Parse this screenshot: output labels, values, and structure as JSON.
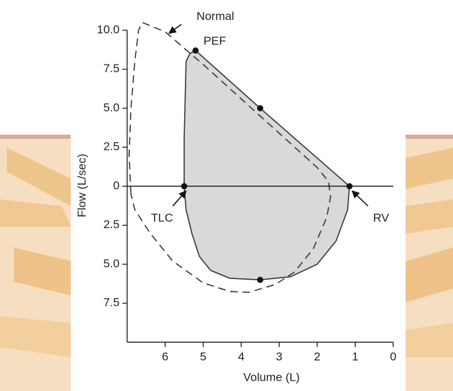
{
  "chart_data": {
    "type": "line",
    "xlabel": "Volume (L)",
    "ylabel": "Flow (L/sec)",
    "xlim": [
      7,
      0
    ],
    "xticks": [
      6,
      5,
      4,
      3,
      2,
      1,
      0
    ],
    "ylim": [
      -10,
      10
    ],
    "yticks": [
      {
        "value": 10,
        "label": "10.0"
      },
      7.5,
      {
        "value": 5,
        "label": "5.0"
      },
      2.5,
      0,
      {
        "value": -2.5,
        "label": "2.5"
      },
      {
        "value": -5,
        "label": "5.0"
      },
      {
        "value": -7.5,
        "label": "7.5"
      }
    ],
    "zero_line": true,
    "series": [
      {
        "color": "#333333",
        "fill": "#d9d9d9",
        "dashed": false,
        "x": [
          5.5,
          5.5,
          5.47,
          5.45,
          5.35,
          5.2,
          3.5,
          1.15,
          1.2,
          1.5,
          2,
          2.7,
          3.5,
          4.3,
          4.8,
          5.1,
          5.3,
          5.45,
          5.5
        ],
        "values": [
          0,
          3,
          6,
          8,
          8.5,
          8.7,
          5.0,
          0,
          -1.5,
          -3.5,
          -5,
          -5.8,
          -6.0,
          -5.9,
          -5.4,
          -4.5,
          -3,
          -1.5,
          0
        ]
      },
      {
        "color": "#333333",
        "dashed": true,
        "x": [
          6.9,
          6.95,
          6.9,
          6.8,
          6.7,
          6.6,
          6.4,
          6,
          5,
          4,
          3,
          2,
          1.7,
          1.65,
          1.75,
          2.1,
          2.6,
          3.1,
          3.8,
          4.3,
          5,
          5.8,
          6.4,
          6.8,
          6.9
        ],
        "values": [
          -0.5,
          2,
          5,
          8,
          10,
          10.5,
          10.3,
          9.9,
          7.8,
          5.6,
          3.4,
          1.2,
          0.3,
          -0.7,
          -2,
          -4,
          -5.5,
          -6.3,
          -6.8,
          -6.75,
          -6.2,
          -4.8,
          -3,
          -1.5,
          -0.5
        ]
      }
    ],
    "points": {
      "color": "#111111",
      "x": [
        5.2,
        3.5,
        5.5,
        1.15,
        3.5
      ],
      "values": [
        8.7,
        5.0,
        0,
        0,
        -6.0
      ]
    },
    "annotations": [
      {
        "text": "Normal",
        "x": 5.9,
        "y": 9.8,
        "arrow": true
      },
      {
        "text": "PEF",
        "x": 5.2,
        "y": 8.7,
        "arrow": false
      },
      {
        "text": "TLC",
        "x": 5.45,
        "y": -0.3,
        "arrow": true
      },
      {
        "text": "RV",
        "x": 1.08,
        "y": -0.3,
        "arrow": true
      }
    ]
  }
}
